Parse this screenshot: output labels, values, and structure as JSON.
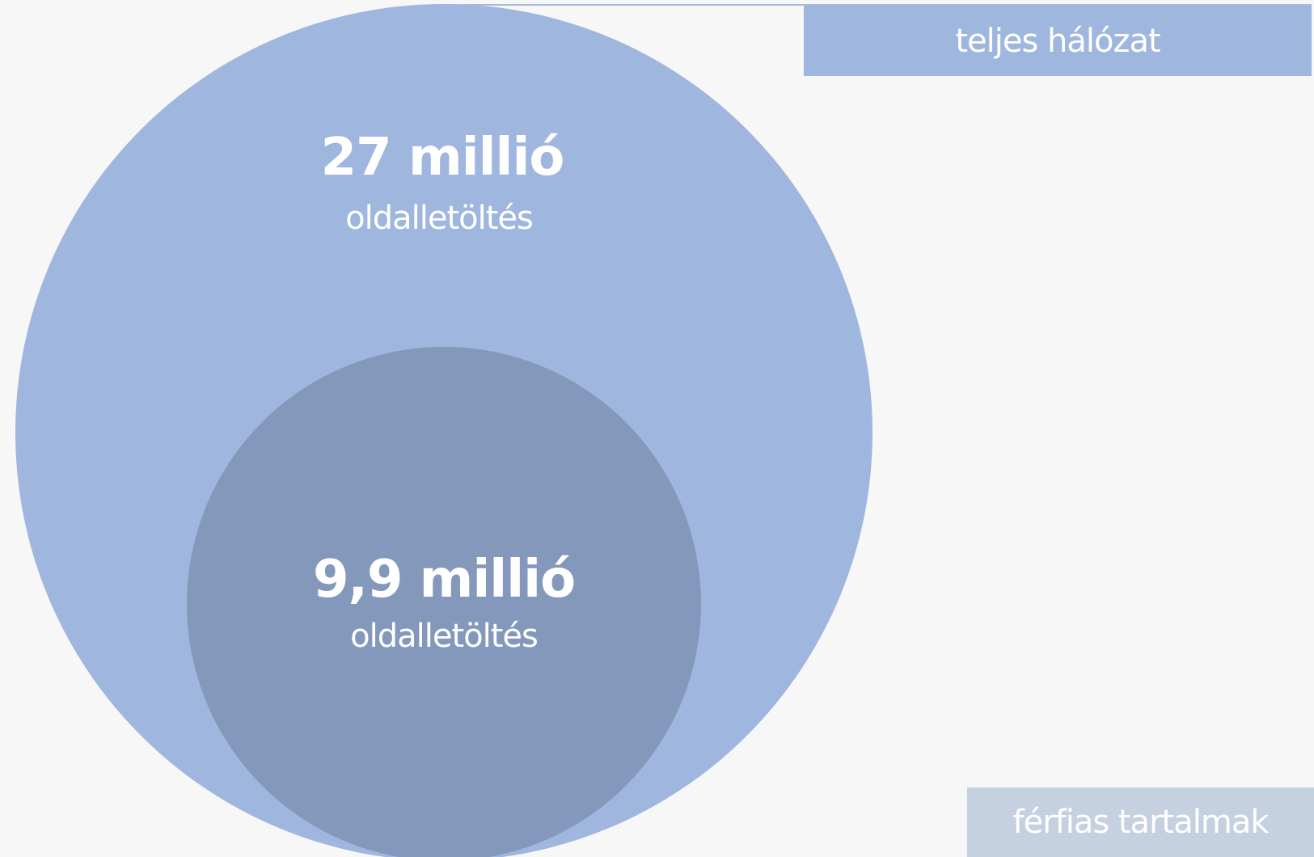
{
  "colors": {
    "background": "#f7f7f7",
    "total_circle": "#9fb6de",
    "men_circle": "#8498bb",
    "legend_total_bg": "#9fb6de",
    "legend_men_bg": "#c5d0e1",
    "text": "#ffffff"
  },
  "outer_circle": {
    "value": "27 millió",
    "unit": "oldalletöltés"
  },
  "inner_circle": {
    "value": "9,9 millió",
    "unit": "oldalletöltés"
  },
  "legend": {
    "total_label": "teljes hálózat",
    "men_label": "férfias tartalmak"
  }
}
